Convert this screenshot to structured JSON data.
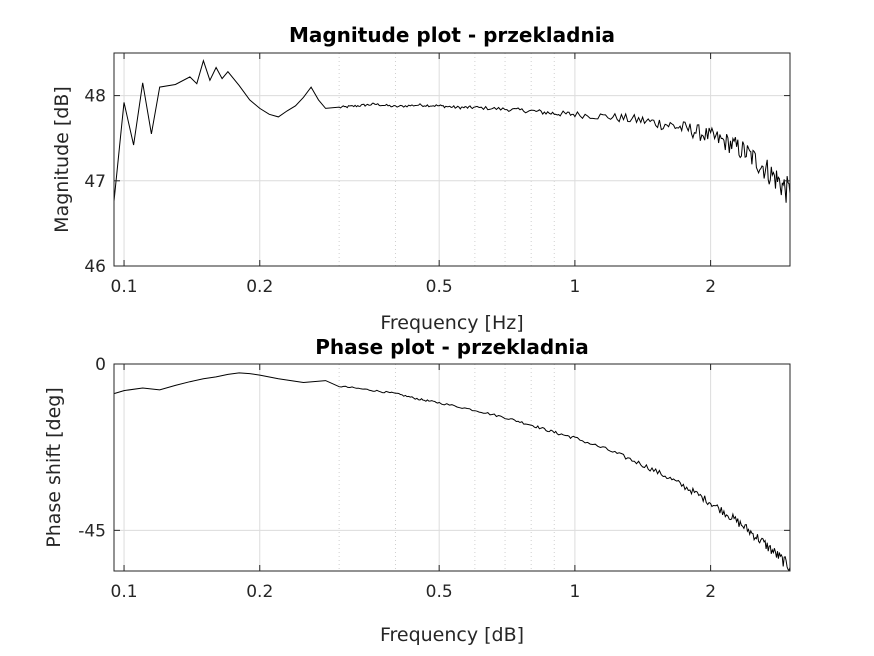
{
  "chart_data": [
    {
      "type": "line",
      "title": "Magnitude plot - przekladnia",
      "xlabel": "Frequency [Hz]",
      "ylabel": "Magnitude [dB]",
      "xscale": "log",
      "xlim": [
        0.095,
        3.0
      ],
      "ylim": [
        46,
        48.5
      ],
      "xticks": [
        0.1,
        0.2,
        0.5,
        1,
        2
      ],
      "xtick_labels": [
        "0.1",
        "0.2",
        "0.5",
        "1",
        "2"
      ],
      "xminor": [
        0.3,
        0.4,
        0.6,
        0.7,
        0.8,
        0.9,
        3
      ],
      "yticks": [
        46,
        47,
        48
      ],
      "ytick_labels": [
        "46",
        "47",
        "48"
      ],
      "grid": true,
      "color": "#000000",
      "x": [
        0.095,
        0.1,
        0.105,
        0.11,
        0.115,
        0.12,
        0.13,
        0.14,
        0.145,
        0.15,
        0.155,
        0.16,
        0.165,
        0.17,
        0.18,
        0.19,
        0.2,
        0.21,
        0.22,
        0.23,
        0.24,
        0.25,
        0.26,
        0.27,
        0.28,
        0.3,
        0.33,
        0.36,
        0.4,
        0.45,
        0.5,
        0.55,
        0.6,
        0.7,
        0.8,
        0.9,
        1.0,
        1.2,
        1.4,
        1.6,
        1.8,
        2.0,
        2.2,
        2.4,
        2.6,
        2.8,
        3.0
      ],
      "y": [
        46.76,
        47.92,
        47.42,
        48.15,
        47.55,
        48.1,
        48.13,
        48.22,
        48.14,
        48.41,
        48.18,
        48.33,
        48.2,
        48.28,
        48.12,
        47.95,
        47.85,
        47.78,
        47.75,
        47.82,
        47.88,
        47.98,
        48.1,
        47.95,
        47.85,
        47.86,
        47.88,
        47.9,
        47.87,
        47.89,
        47.88,
        47.86,
        47.86,
        47.84,
        47.82,
        47.79,
        47.78,
        47.75,
        47.71,
        47.66,
        47.6,
        47.52,
        47.44,
        47.33,
        47.18,
        47.02,
        46.85
      ]
    },
    {
      "type": "line",
      "title": "Phase plot - przekladnia",
      "xlabel": "Frequency [dB]",
      "ylabel": "Phase shift [deg]",
      "xscale": "log",
      "xlim": [
        0.095,
        3.0
      ],
      "ylim": [
        -56,
        0
      ],
      "xticks": [
        0.1,
        0.2,
        0.5,
        1,
        2
      ],
      "xtick_labels": [
        "0.1",
        "0.2",
        "0.5",
        "1",
        "2"
      ],
      "xminor": [
        0.3,
        0.4,
        0.6,
        0.7,
        0.8,
        0.9,
        3
      ],
      "yticks": [
        -45,
        0
      ],
      "ytick_labels": [
        "-45",
        "0"
      ],
      "grid": true,
      "color": "#000000",
      "x": [
        0.095,
        0.1,
        0.11,
        0.12,
        0.13,
        0.14,
        0.15,
        0.16,
        0.17,
        0.18,
        0.19,
        0.2,
        0.22,
        0.25,
        0.28,
        0.3,
        0.35,
        0.4,
        0.45,
        0.5,
        0.6,
        0.7,
        0.8,
        0.9,
        1.0,
        1.2,
        1.4,
        1.6,
        1.8,
        2.0,
        2.2,
        2.4,
        2.6,
        2.8,
        3.0
      ],
      "y": [
        -8.0,
        -7.2,
        -6.5,
        -7.0,
        -5.8,
        -4.8,
        -4.0,
        -3.5,
        -2.8,
        -2.4,
        -2.6,
        -3.0,
        -4.0,
        -5.0,
        -4.5,
        -6.0,
        -7.0,
        -8.0,
        -9.5,
        -10.5,
        -12.5,
        -14.5,
        -16.5,
        -18.5,
        -20.0,
        -23.5,
        -27.0,
        -30.5,
        -34.0,
        -37.5,
        -41.0,
        -44.5,
        -48.0,
        -51.5,
        -55.0
      ]
    }
  ]
}
